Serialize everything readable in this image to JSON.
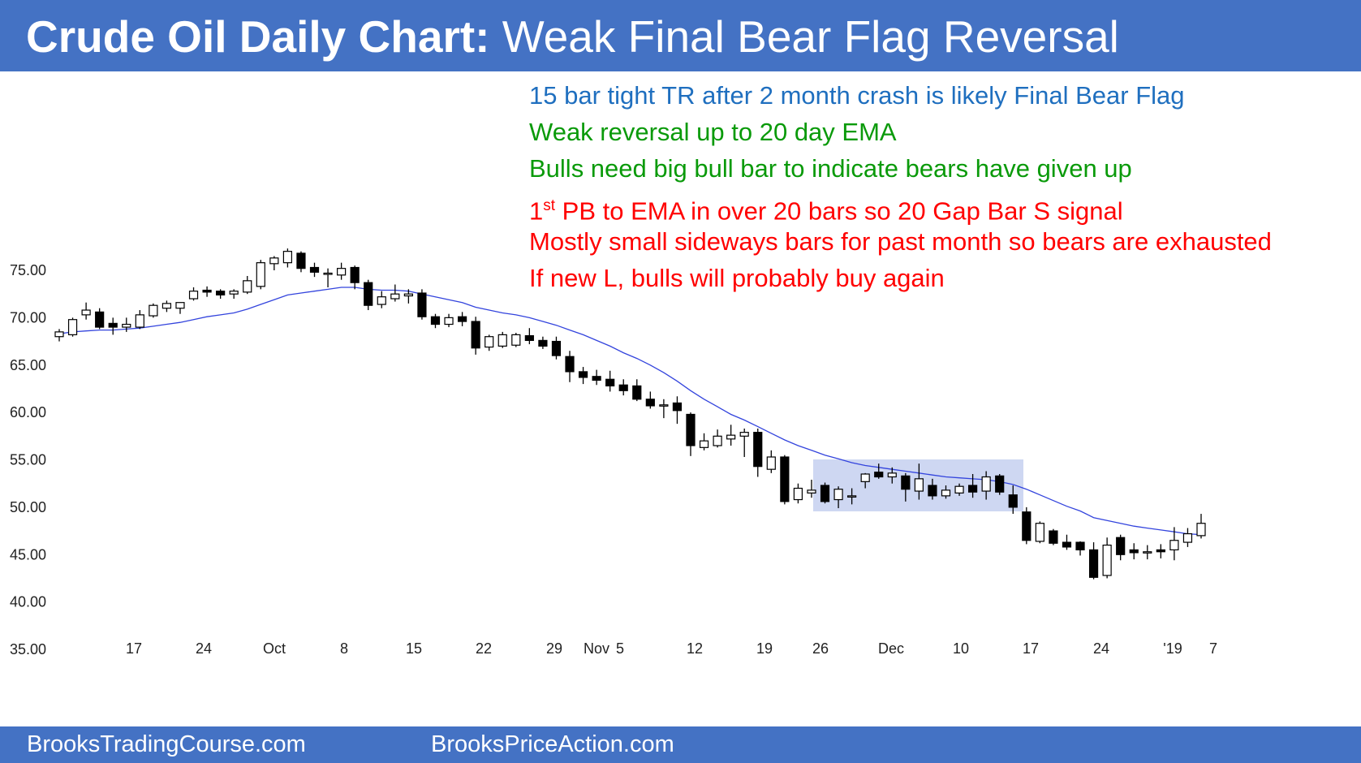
{
  "header": {
    "title_bold": "Crude Oil Daily Chart:",
    "title_rest": " Weak Final Bear Flag Reversal"
  },
  "footer": {
    "left": "BrooksTradingCourse.com",
    "right": "BrooksPriceAction.com"
  },
  "annotations": [
    {
      "text": "15 bar tight TR after 2 month crash is likely Final Bear Flag",
      "color": "blue"
    },
    {
      "text": "Weak reversal up to 20 day EMA",
      "color": "green"
    },
    {
      "text": "Bulls need big bull bar to indicate bears have given up",
      "color": "green"
    },
    {
      "text_pre": "1",
      "text_sup": "st",
      "text_post": " PB to EMA in over 20 bars so 20 Gap Bar S signal",
      "color": "red"
    },
    {
      "text": "Mostly small sideways bars for past month so bears are exhausted",
      "color": "red"
    },
    {
      "text": "If new L, bulls will probably buy again",
      "color": "red"
    }
  ],
  "chart_data": {
    "type": "candlestick",
    "y_ticks": [
      "75.00",
      "70.00",
      "65.00",
      "60.00",
      "55.00",
      "50.00",
      "45.00",
      "40.00",
      "35.00"
    ],
    "x_ticks": [
      "17",
      "24",
      "Oct",
      "8",
      "15",
      "22",
      "29",
      "Nov",
      "5",
      "12",
      "19",
      "26",
      "Dec",
      "10",
      "17",
      "24",
      "'19",
      "7"
    ],
    "ylim": [
      32,
      80
    ],
    "candles": [
      [
        68.0,
        68.8,
        67.5,
        68.5
      ],
      [
        68.2,
        70.0,
        68.0,
        69.8
      ],
      [
        70.3,
        71.6,
        69.8,
        70.8
      ],
      [
        70.6,
        71.0,
        68.8,
        69.0
      ],
      [
        69.4,
        70.0,
        68.2,
        69.0
      ],
      [
        69.0,
        70.0,
        68.5,
        69.3
      ],
      [
        69.0,
        70.8,
        68.8,
        70.3
      ],
      [
        70.2,
        71.5,
        70.0,
        71.3
      ],
      [
        71.0,
        71.8,
        70.6,
        71.5
      ],
      [
        71.0,
        71.6,
        70.4,
        71.6
      ],
      [
        72.0,
        73.2,
        71.8,
        72.8
      ],
      [
        72.9,
        73.3,
        72.2,
        72.7
      ],
      [
        72.8,
        73.0,
        72.0,
        72.4
      ],
      [
        72.5,
        73.0,
        72.0,
        72.8
      ],
      [
        72.7,
        74.4,
        72.5,
        73.9
      ],
      [
        73.3,
        76.1,
        73.0,
        75.8
      ],
      [
        75.7,
        76.5,
        75.0,
        76.3
      ],
      [
        75.8,
        77.3,
        75.3,
        77.0
      ],
      [
        76.8,
        77.0,
        74.8,
        75.2
      ],
      [
        75.3,
        75.8,
        74.3,
        74.8
      ],
      [
        74.7,
        75.2,
        73.2,
        74.7
      ],
      [
        74.5,
        75.8,
        74.0,
        75.2
      ],
      [
        75.3,
        75.5,
        73.0,
        73.7
      ],
      [
        73.7,
        74.0,
        70.8,
        71.3
      ],
      [
        71.4,
        72.8,
        71.0,
        72.2
      ],
      [
        72.0,
        73.5,
        71.7,
        72.5
      ],
      [
        72.3,
        73.0,
        71.5,
        72.5
      ],
      [
        72.6,
        73.0,
        69.8,
        70.1
      ],
      [
        70.1,
        70.4,
        68.9,
        69.3
      ],
      [
        69.3,
        70.4,
        69.0,
        70.0
      ],
      [
        70.1,
        70.6,
        69.1,
        69.6
      ],
      [
        69.6,
        70.1,
        66.1,
        66.8
      ],
      [
        66.9,
        68.2,
        66.5,
        68.0
      ],
      [
        67.0,
        68.5,
        66.8,
        68.2
      ],
      [
        67.1,
        68.4,
        66.9,
        68.2
      ],
      [
        68.1,
        68.9,
        67.2,
        67.6
      ],
      [
        67.6,
        68.0,
        66.7,
        67.0
      ],
      [
        67.5,
        68.0,
        65.6,
        66.0
      ],
      [
        65.9,
        66.5,
        63.2,
        64.3
      ],
      [
        64.3,
        64.8,
        63.0,
        63.7
      ],
      [
        63.8,
        64.5,
        62.9,
        63.4
      ],
      [
        63.5,
        64.4,
        62.2,
        62.8
      ],
      [
        62.9,
        63.5,
        61.8,
        62.3
      ],
      [
        62.8,
        63.5,
        61.2,
        61.4
      ],
      [
        61.4,
        62.2,
        60.4,
        60.7
      ],
      [
        60.7,
        61.4,
        59.4,
        60.8
      ],
      [
        61.0,
        61.7,
        58.8,
        60.2
      ],
      [
        59.8,
        60.0,
        55.4,
        56.5
      ],
      [
        56.3,
        57.8,
        56.0,
        57.0
      ],
      [
        56.5,
        58.2,
        56.3,
        57.5
      ],
      [
        57.2,
        58.7,
        56.5,
        57.6
      ],
      [
        57.5,
        58.3,
        55.3,
        57.9
      ],
      [
        57.9,
        58.3,
        53.2,
        54.3
      ],
      [
        54.0,
        56.0,
        53.6,
        55.3
      ],
      [
        55.3,
        55.5,
        50.3,
        50.6
      ],
      [
        50.8,
        52.5,
        50.4,
        52.0
      ],
      [
        51.5,
        52.9,
        51.0,
        51.8
      ],
      [
        52.3,
        52.6,
        50.4,
        50.6
      ],
      [
        50.8,
        52.2,
        49.9,
        51.9
      ],
      [
        51.1,
        52.0,
        50.3,
        51.2
      ],
      [
        52.7,
        53.6,
        52.0,
        53.5
      ],
      [
        53.7,
        54.6,
        53.0,
        53.2
      ],
      [
        53.2,
        54.2,
        52.5,
        53.6
      ],
      [
        53.3,
        53.6,
        50.6,
        51.9
      ],
      [
        51.7,
        54.6,
        50.8,
        53.0
      ],
      [
        52.3,
        53.0,
        50.8,
        51.2
      ],
      [
        51.2,
        52.3,
        50.9,
        51.8
      ],
      [
        51.5,
        52.5,
        51.2,
        52.2
      ],
      [
        52.3,
        53.5,
        51.0,
        51.6
      ],
      [
        51.7,
        53.8,
        50.8,
        53.2
      ],
      [
        53.3,
        53.5,
        51.3,
        51.6
      ],
      [
        51.3,
        52.3,
        49.3,
        50.0
      ],
      [
        49.5,
        50.0,
        46.1,
        46.5
      ],
      [
        46.4,
        48.5,
        46.2,
        48.3
      ],
      [
        47.5,
        47.7,
        46.0,
        46.2
      ],
      [
        46.3,
        47.1,
        45.5,
        45.8
      ],
      [
        46.3,
        46.4,
        44.9,
        45.5
      ],
      [
        45.5,
        46.3,
        42.4,
        42.6
      ],
      [
        42.8,
        46.8,
        42.5,
        46.0
      ],
      [
        46.8,
        47.1,
        44.4,
        45.0
      ],
      [
        45.5,
        46.2,
        44.5,
        45.2
      ],
      [
        45.2,
        46.0,
        44.5,
        45.3
      ],
      [
        45.5,
        46.1,
        44.6,
        45.3
      ],
      [
        45.5,
        47.9,
        44.4,
        46.5
      ],
      [
        46.3,
        47.8,
        45.8,
        47.2
      ],
      [
        47.0,
        49.3,
        46.7,
        48.3
      ]
    ],
    "ema": [
      68.3,
      68.5,
      68.6,
      68.7,
      68.7,
      68.8,
      68.9,
      69.1,
      69.3,
      69.5,
      69.8,
      70.1,
      70.3,
      70.5,
      70.9,
      71.4,
      71.9,
      72.4,
      72.6,
      72.8,
      73.0,
      73.2,
      73.2,
      73.0,
      72.9,
      72.9,
      72.8,
      72.5,
      72.2,
      71.9,
      71.6,
      71.1,
      70.8,
      70.5,
      70.3,
      70.0,
      69.6,
      69.2,
      68.7,
      68.2,
      67.6,
      67.0,
      66.3,
      65.7,
      65.0,
      64.2,
      63.3,
      62.3,
      61.4,
      60.6,
      59.8,
      59.2,
      58.5,
      57.8,
      57.1,
      56.5,
      56.0,
      55.5,
      55.1,
      54.7,
      54.4,
      54.2,
      54.0,
      53.8,
      53.6,
      53.4,
      53.2,
      53.1,
      53.0,
      52.9,
      52.7,
      52.4,
      51.9,
      51.3,
      50.7,
      50.1,
      49.6,
      48.9,
      48.6,
      48.3,
      48.0,
      47.8,
      47.6,
      47.4,
      47.2,
      47.1
    ]
  }
}
